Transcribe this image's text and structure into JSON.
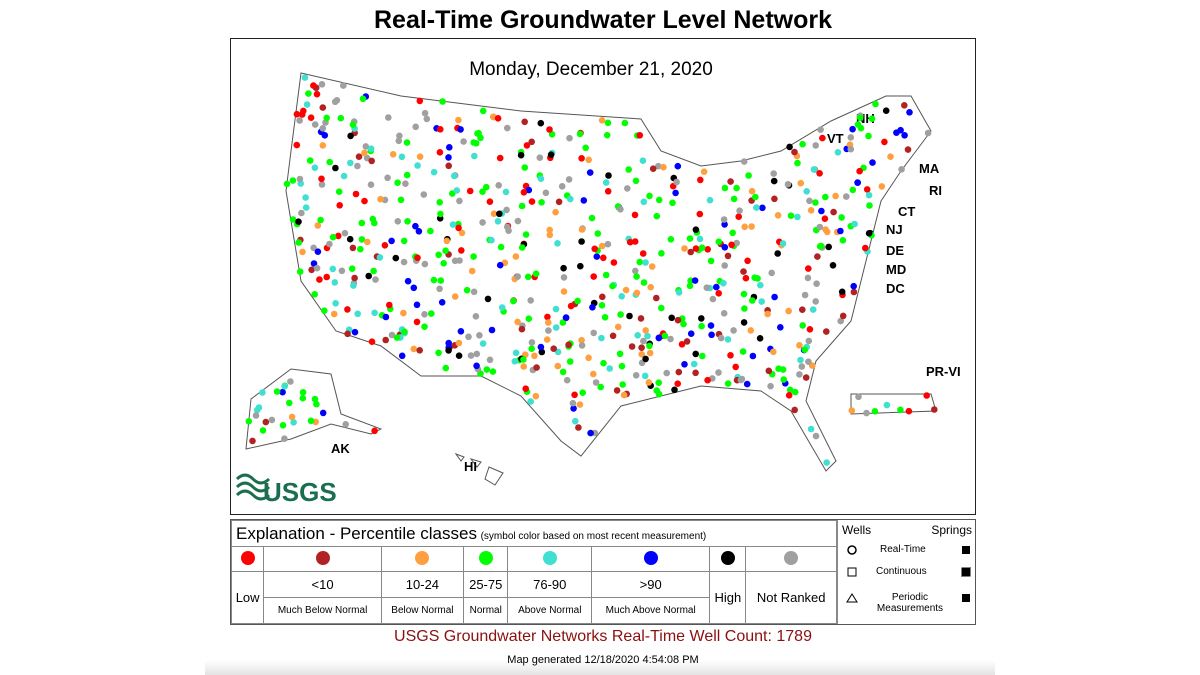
{
  "header": {
    "title": "Real-Time Groundwater Level Network",
    "date": "Monday, December 21, 2020"
  },
  "map": {
    "region_labels": [
      "NH",
      "VT",
      "MA",
      "RI",
      "CT",
      "NJ",
      "DE",
      "MD",
      "DC",
      "PR-VI",
      "AK",
      "HI"
    ],
    "logo": "USGS"
  },
  "legend": {
    "title": "Explanation - Percentile classes",
    "note": "(symbol color based on most recent measurement)",
    "classes": [
      {
        "color": "#ff0000",
        "description": "Low"
      },
      {
        "color": "#b22222",
        "range": "<10",
        "description": "Much Below Normal"
      },
      {
        "color": "#ffa040",
        "range": "10-24",
        "description": "Below Normal"
      },
      {
        "color": "#00ff00",
        "range": "25-75",
        "description": "Normal"
      },
      {
        "color": "#40e0d0",
        "range": "76-90",
        "description": "Above Normal"
      },
      {
        "color": "#0000ff",
        "range": ">90",
        "description": "Much Above Normal"
      },
      {
        "color": "#000000",
        "description": "High"
      },
      {
        "color": "#a0a0a0",
        "description": "Not Ranked"
      }
    ],
    "wells_header": "Wells",
    "springs_header": "Springs",
    "symbols": [
      "Real-Time",
      "Continuous",
      "Periodic Measurements"
    ]
  },
  "footer": {
    "count_label": "USGS Groundwater Networks Real-Time Well Count:",
    "count": 1789,
    "generated": "Map generated 12/18/2020 4:54:08 PM"
  }
}
